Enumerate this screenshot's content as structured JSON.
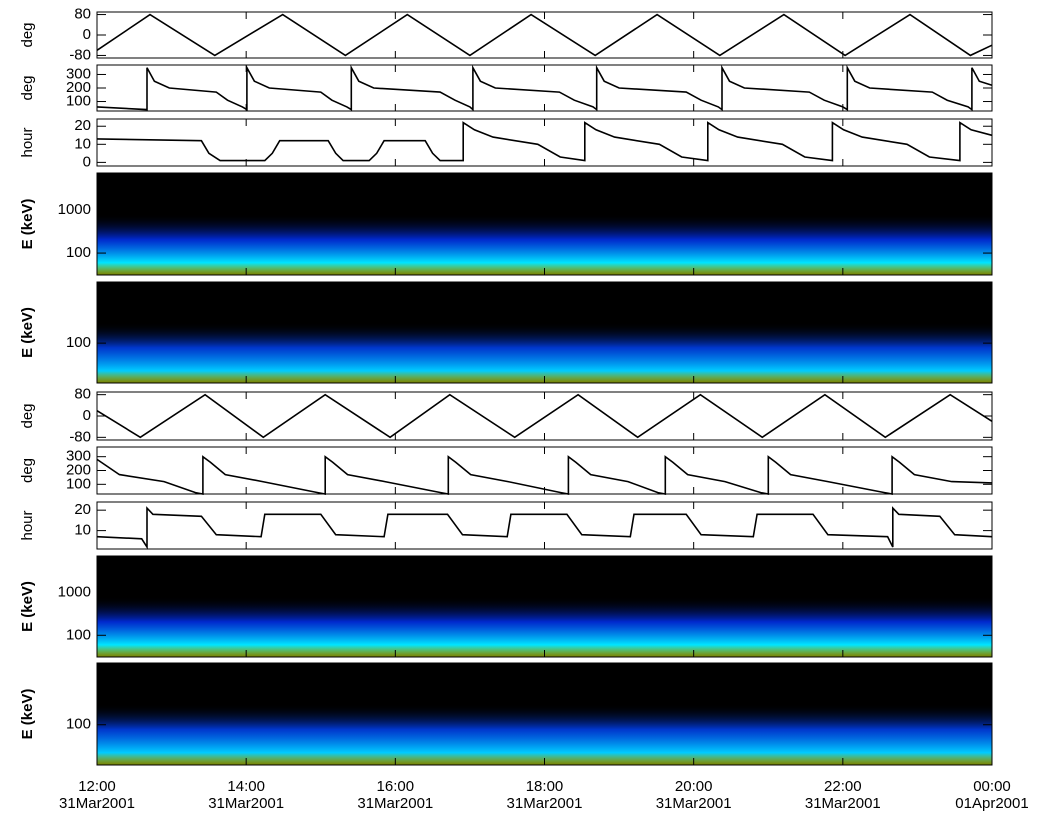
{
  "chart_data": [
    {
      "type": "line",
      "ylabel": "deg",
      "ylim": [
        -90,
        90
      ],
      "yticks": [
        80,
        0,
        -80
      ],
      "color": "#000000",
      "x": [
        12.0,
        12.71,
        13.58,
        14.49,
        15.33,
        16.16,
        17.0,
        17.82,
        18.68,
        19.51,
        20.35,
        21.21,
        22.03,
        22.9,
        23.71,
        24.0
      ],
      "values": [
        -60,
        80,
        -80,
        80,
        -80,
        80,
        -80,
        80,
        -80,
        80,
        -80,
        80,
        -80,
        80,
        -80,
        -40
      ]
    },
    {
      "type": "line",
      "ylabel": "deg",
      "ylim": [
        30,
        370
      ],
      "yticks": [
        100,
        200,
        300
      ],
      "color": "#000000",
      "x": [
        12.0,
        12.67,
        12.67,
        12.77,
        12.97,
        13.6,
        13.75,
        13.95,
        14.01,
        14.01,
        14.11,
        14.31,
        15.0,
        15.15,
        15.35,
        15.41,
        15.41,
        15.51,
        15.71,
        16.6,
        16.8,
        17.0,
        17.04,
        17.04,
        17.14,
        17.34,
        18.2,
        18.4,
        18.65,
        18.7,
        18.7,
        18.8,
        19.0,
        19.9,
        20.1,
        20.33,
        20.38,
        20.38,
        20.48,
        20.68,
        21.55,
        21.75,
        22.0,
        22.06,
        22.06,
        22.16,
        22.36,
        23.2,
        23.4,
        23.68,
        23.73,
        23.73,
        23.83,
        24.0
      ],
      "values": [
        60,
        40,
        350,
        250,
        200,
        170,
        110,
        60,
        40,
        350,
        250,
        200,
        170,
        110,
        60,
        40,
        350,
        250,
        200,
        170,
        110,
        60,
        40,
        350,
        250,
        200,
        170,
        110,
        60,
        40,
        350,
        250,
        200,
        170,
        110,
        60,
        40,
        350,
        250,
        200,
        170,
        110,
        60,
        40,
        350,
        250,
        200,
        170,
        110,
        60,
        40,
        350,
        250,
        220
      ]
    },
    {
      "type": "line",
      "ylabel": "hour",
      "ylim": [
        -2,
        24
      ],
      "yticks": [
        0,
        10,
        20
      ],
      "color": "#000000",
      "x": [
        12.0,
        13.4,
        13.5,
        13.65,
        14.25,
        14.35,
        14.45,
        15.1,
        15.2,
        15.3,
        15.65,
        15.75,
        15.85,
        16.4,
        16.5,
        16.6,
        16.91,
        16.91,
        17.06,
        17.31,
        17.91,
        18.21,
        18.54,
        18.54,
        18.69,
        18.94,
        19.54,
        19.84,
        20.19,
        20.19,
        20.34,
        20.59,
        21.19,
        21.49,
        21.86,
        21.86,
        22.01,
        22.26,
        22.86,
        23.16,
        23.57,
        23.57,
        23.72,
        24.0
      ],
      "values": [
        13,
        12,
        5,
        1,
        1,
        5,
        12,
        12,
        5,
        1,
        1,
        5,
        12,
        12,
        5,
        1,
        1,
        22,
        18,
        14,
        10,
        3,
        1,
        22,
        18,
        14,
        10,
        3,
        1,
        22,
        18,
        14,
        10,
        3,
        1,
        22,
        18,
        14,
        10,
        3,
        1,
        22,
        18,
        15
      ]
    },
    {
      "type": "spectrogram",
      "ylabel": "E (keV)",
      "ylim": [
        31,
        7200
      ],
      "log": true,
      "yticks": [
        100,
        1000
      ],
      "colormap": [
        "#000000",
        "#0033ff",
        "#00e5ff",
        "#f0ff00"
      ]
    },
    {
      "type": "spectrogram",
      "ylabel": "E (keV)",
      "ylim": [
        35,
        500
      ],
      "log": true,
      "yticks": [
        100
      ],
      "colormap": [
        "#000000",
        "#0044ff",
        "#00ccff",
        "#f0ff00"
      ]
    },
    {
      "type": "line",
      "ylabel": "deg",
      "ylim": [
        -90,
        90
      ],
      "yticks": [
        80,
        0,
        -80
      ],
      "color": "#000000",
      "x": [
        12.0,
        12.58,
        13.45,
        14.23,
        15.06,
        15.93,
        16.73,
        17.6,
        18.45,
        19.25,
        20.09,
        20.92,
        21.76,
        22.57,
        23.44,
        24.0
      ],
      "values": [
        20,
        -80,
        80,
        -80,
        80,
        -80,
        80,
        -80,
        80,
        -80,
        80,
        -80,
        80,
        -80,
        80,
        -20
      ]
    },
    {
      "type": "line",
      "ylabel": "deg",
      "ylim": [
        30,
        370
      ],
      "yticks": [
        100,
        200,
        300
      ],
      "color": "#000000",
      "x": [
        12.0,
        12.3,
        12.9,
        13.32,
        13.42,
        13.42,
        13.52,
        13.72,
        14.22,
        14.96,
        15.06,
        15.06,
        15.16,
        15.36,
        15.86,
        16.61,
        16.71,
        16.71,
        16.81,
        17.01,
        17.51,
        18.22,
        18.32,
        18.32,
        18.42,
        18.62,
        19.12,
        19.52,
        19.62,
        19.62,
        19.72,
        19.92,
        20.42,
        20.9,
        21.0,
        21.0,
        21.1,
        21.3,
        21.8,
        22.56,
        22.66,
        22.66,
        22.76,
        22.96,
        23.46,
        24.0
      ],
      "values": [
        280,
        170,
        120,
        40,
        30,
        300,
        260,
        170,
        120,
        40,
        30,
        300,
        260,
        170,
        120,
        40,
        30,
        300,
        260,
        170,
        120,
        40,
        30,
        300,
        260,
        170,
        120,
        40,
        30,
        300,
        260,
        170,
        120,
        40,
        30,
        300,
        260,
        170,
        120,
        40,
        30,
        300,
        260,
        170,
        120,
        110
      ]
    },
    {
      "type": "line",
      "ylabel": "hour",
      "ylim": [
        1,
        24
      ],
      "yticks": [
        10,
        20
      ],
      "color": "#000000",
      "x": [
        12.0,
        12.6,
        12.67,
        12.67,
        12.75,
        13.4,
        13.6,
        14.2,
        14.25,
        15.0,
        15.2,
        15.85,
        15.9,
        16.7,
        16.9,
        17.5,
        17.55,
        18.3,
        18.5,
        19.15,
        19.2,
        19.9,
        20.1,
        20.8,
        20.85,
        21.6,
        21.8,
        22.6,
        22.67,
        22.67,
        22.75,
        23.3,
        23.5,
        24.0
      ],
      "values": [
        7,
        6,
        2,
        21,
        18,
        17,
        8,
        7,
        18,
        18,
        8,
        7,
        18,
        18,
        8,
        7,
        18,
        18,
        8,
        7,
        18,
        18,
        8,
        7,
        18,
        18,
        8,
        7,
        2,
        21,
        18,
        17,
        8,
        7
      ]
    },
    {
      "type": "spectrogram",
      "ylabel": "E (keV)",
      "ylim": [
        31,
        7200
      ],
      "log": true,
      "yticks": [
        100,
        1000
      ],
      "colormap": [
        "#000000",
        "#0033ff",
        "#00e5ff",
        "#f0ff00"
      ]
    },
    {
      "type": "spectrogram",
      "ylabel": "E (keV)",
      "ylim": [
        35,
        500
      ],
      "log": true,
      "yticks": [
        100
      ],
      "colormap": [
        "#000000",
        "#0044ff",
        "#00ccff",
        "#f0ff00"
      ],
      "xlim": [
        12,
        24
      ],
      "xticks": [
        {
          "value": 12,
          "label": "12:00"
        },
        {
          "value": 14,
          "label": "14:00"
        },
        {
          "value": 16,
          "label": "16:00"
        },
        {
          "value": 18,
          "label": "18:00"
        },
        {
          "value": 20,
          "label": "20:00"
        },
        {
          "value": 22,
          "label": "22:00"
        },
        {
          "value": 24,
          "label": "00:00"
        }
      ],
      "xtick_sublabels": [
        "31Mar2001",
        "31Mar2001",
        "31Mar2001",
        "31Mar2001",
        "31Mar2001",
        "31Mar2001",
        "01Apr2001"
      ]
    }
  ]
}
